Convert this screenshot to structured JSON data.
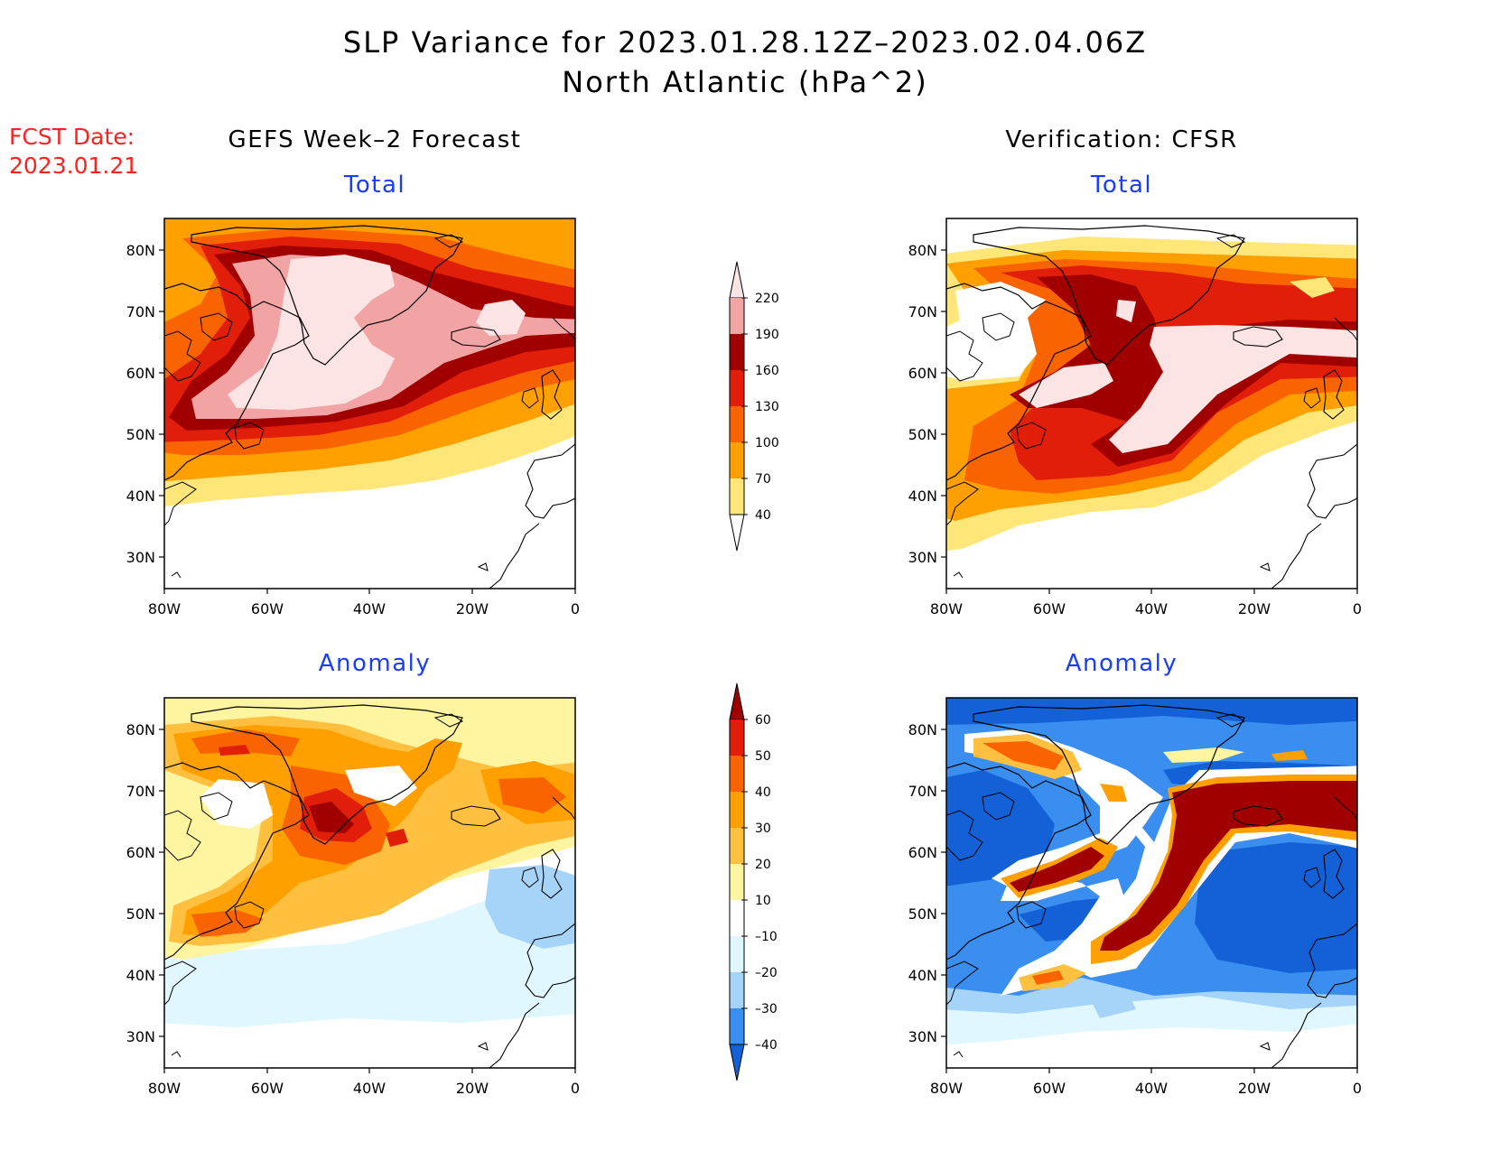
{
  "header": {
    "title_line1": "SLP Variance for 2023.01.28.12Z–2023.02.04.06Z",
    "title_line2": "North Atlantic (hPa^2)"
  },
  "fcst": {
    "line1": "FCST Date:",
    "line2": "2023.01.21"
  },
  "columns": {
    "left_title": "GEFS Week–2 Forecast",
    "right_title": "Verification: CFSR"
  },
  "panels": {
    "total": "Total",
    "anomaly": "Anomaly"
  },
  "axes": {
    "lat_labels": [
      "80N",
      "70N",
      "60N",
      "50N",
      "40N",
      "30N"
    ],
    "lon_labels": [
      "80W",
      "60W",
      "40W",
      "20W",
      "0"
    ]
  },
  "colorbars": {
    "total": {
      "labels": [
        "220",
        "190",
        "160",
        "130",
        "100",
        "70",
        "40"
      ],
      "colors": [
        "#fde4e4",
        "#f2a3a3",
        "#a00000",
        "#e01e0a",
        "#fa6400",
        "#ffa000",
        "#ffe678"
      ]
    },
    "anomaly": {
      "labels": [
        "60",
        "50",
        "40",
        "30",
        "20",
        "10",
        "–10",
        "–20",
        "–30",
        "–40"
      ],
      "colors": [
        "#a00000",
        "#e01e0a",
        "#fa6400",
        "#ffa000",
        "#ffc040",
        "#fff5a0",
        "#ffffff",
        "#e0f7ff",
        "#a6d4f8",
        "#3a8ef0",
        "#1460d6"
      ]
    }
  },
  "colors": {
    "title_blue": "#1a3cff",
    "fcst_red": "#ff2020"
  }
}
